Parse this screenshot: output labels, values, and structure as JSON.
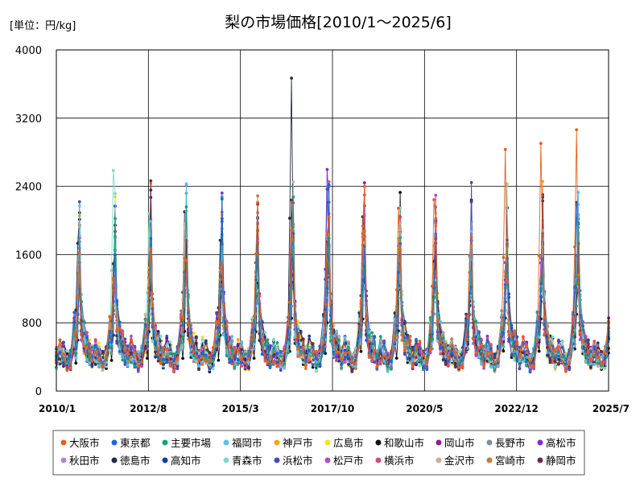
{
  "chart_data": {
    "type": "line",
    "title": "梨の市場価格[2010/1～2025/6]",
    "unit_label": "[単位：円/kg]",
    "ylim": [
      0,
      4000
    ],
    "y_ticks": [
      "0",
      "800",
      "1600",
      "2400",
      "3200",
      "4000"
    ],
    "x_ticks": [
      "2010/1",
      "2012/8",
      "2015/3",
      "2017/10",
      "2020/5",
      "2022/12",
      "2025/7"
    ],
    "grid": {
      "x": true,
      "y": true
    },
    "legend_position": "bottom",
    "series": [
      {
        "name": "大阪市",
        "color": "#E8601C",
        "peaks": [
          1100,
          1330,
          1330,
          1550,
          1460,
          1600,
          1880,
          1860,
          1920,
          2150,
          2250,
          1580,
          2850,
          2900,
          3050,
          3080
        ]
      },
      {
        "name": "東京都",
        "color": "#1F66D4",
        "peaks": [
          900,
          1050,
          1200,
          1400,
          1350,
          1300,
          1550,
          1200,
          1300,
          1400,
          1200,
          1150,
          1250,
          1250,
          2200,
          2360
        ]
      },
      {
        "name": "主要市場",
        "color": "#1BA07A",
        "peaks": [
          800,
          950,
          1000,
          1150,
          1150,
          1100,
          1200,
          1150,
          1200,
          1250,
          1100,
          1100,
          1200,
          1200,
          1250,
          1400
        ]
      },
      {
        "name": "福岡市",
        "color": "#5BC0EB",
        "peaks": [
          700,
          1000,
          1100,
          1200,
          1200,
          1000,
          1300,
          1100,
          1200,
          1200,
          1050,
          1100,
          1100,
          1150,
          1300,
          1380
        ]
      },
      {
        "name": "神戸市",
        "color": "#F2A516",
        "peaks": [
          1000,
          1250,
          1300,
          1480,
          1450,
          1380,
          1600,
          1500,
          1700,
          1800,
          1700,
          1250,
          1400,
          1300,
          1400,
          1450
        ]
      },
      {
        "name": "広島市",
        "color": "#F7DF1E",
        "peaks": [
          900,
          1100,
          1150,
          1300,
          1300,
          1200,
          1400,
          1250,
          1300,
          1500,
          1300,
          1200,
          1300,
          1200,
          1200,
          1180
        ]
      },
      {
        "name": "和歌山市",
        "color": "#111111",
        "peaks": [
          600,
          650,
          700,
          700,
          650,
          700,
          850,
          800,
          850,
          700,
          1520,
          900,
          850,
          850,
          900,
          920
        ]
      },
      {
        "name": "岡山市",
        "color": "#8E1F8E",
        "peaks": [
          800,
          900,
          1000,
          1100,
          1050,
          1000,
          1200,
          1100,
          1200,
          1300,
          1100,
          1000,
          1100,
          1100,
          1150,
          1150
        ]
      },
      {
        "name": "長野市",
        "color": "#7F8C9D",
        "peaks": [
          700,
          800,
          900,
          1000,
          950,
          900,
          1000,
          950,
          1000,
          1100,
          900,
          900,
          950,
          1550,
          1000,
          1000
        ]
      },
      {
        "name": "高松市",
        "color": "#7B2FD6",
        "peaks": [
          1000,
          1100,
          1200,
          1350,
          1300,
          1300,
          1500,
          2580,
          1500,
          1600,
          1300,
          1400,
          1500,
          1500,
          1600,
          1600
        ]
      },
      {
        "name": "秋田市",
        "color": "#A78BD4",
        "peaks": [
          1380,
          1200,
          1250,
          1400,
          1400,
          1350,
          1450,
          1350,
          1400,
          1500,
          1350,
          1300,
          1400,
          1300,
          1400,
          1400
        ]
      },
      {
        "name": "徳島市",
        "color": "#1B3047",
        "peaks": [
          1720,
          1500,
          1200,
          2090,
          1780,
          1500,
          3660,
          1200,
          2030,
          1200,
          1100,
          1000,
          1050,
          1050,
          2200,
          1000
        ]
      },
      {
        "name": "高知市",
        "color": "#0A3FA8",
        "peaks": [
          800,
          1000,
          1100,
          1200,
          1150,
          1100,
          1250,
          1150,
          1200,
          1250,
          1100,
          1000,
          1100,
          1100,
          1200,
          1200
        ]
      },
      {
        "name": "青森市",
        "color": "#7DDCC4",
        "peaks": [
          900,
          2570,
          2080,
          1450,
          1400,
          1300,
          1500,
          1350,
          1450,
          1500,
          1300,
          1580,
          1300,
          1250,
          1270,
          1300
        ]
      },
      {
        "name": "浜松市",
        "color": "#4A4AB8",
        "peaks": [
          900,
          1050,
          1150,
          1300,
          1250,
          1200,
          1400,
          2380,
          1400,
          1500,
          1250,
          1150,
          1300,
          1300,
          1350,
          1350
        ]
      },
      {
        "name": "松戸市",
        "color": "#B04CC4",
        "peaks": [
          800,
          950,
          1050,
          1200,
          1150,
          1100,
          1250,
          1150,
          1250,
          1300,
          1150,
          1050,
          1150,
          1500,
          1200,
          1200
        ]
      },
      {
        "name": "横浜市",
        "color": "#D94A7A",
        "peaks": [
          900,
          1050,
          1150,
          1300,
          1250,
          1200,
          1350,
          1250,
          1850,
          1450,
          1250,
          1150,
          1250,
          1250,
          1300,
          1300
        ]
      },
      {
        "name": "金沢市",
        "color": "#C9B09A",
        "peaks": [
          850,
          1000,
          1450,
          1960,
          1300,
          1250,
          1400,
          1300,
          1350,
          1450,
          1200,
          1150,
          1250,
          1250,
          1300,
          1300
        ]
      },
      {
        "name": "宮崎市",
        "color": "#C97A3A",
        "peaks": [
          1000,
          1300,
          1400,
          1500,
          1400,
          1400,
          1650,
          1500,
          1800,
          1700,
          1500,
          1200,
          1350,
          1300,
          1350,
          1350
        ]
      },
      {
        "name": "静岡市",
        "color": "#6B2A4A",
        "peaks": [
          800,
          950,
          1050,
          1150,
          1100,
          1100,
          2250,
          1750,
          1200,
          1300,
          1100,
          1050,
          1100,
          1100,
          1150,
          1150
        ]
      }
    ]
  }
}
